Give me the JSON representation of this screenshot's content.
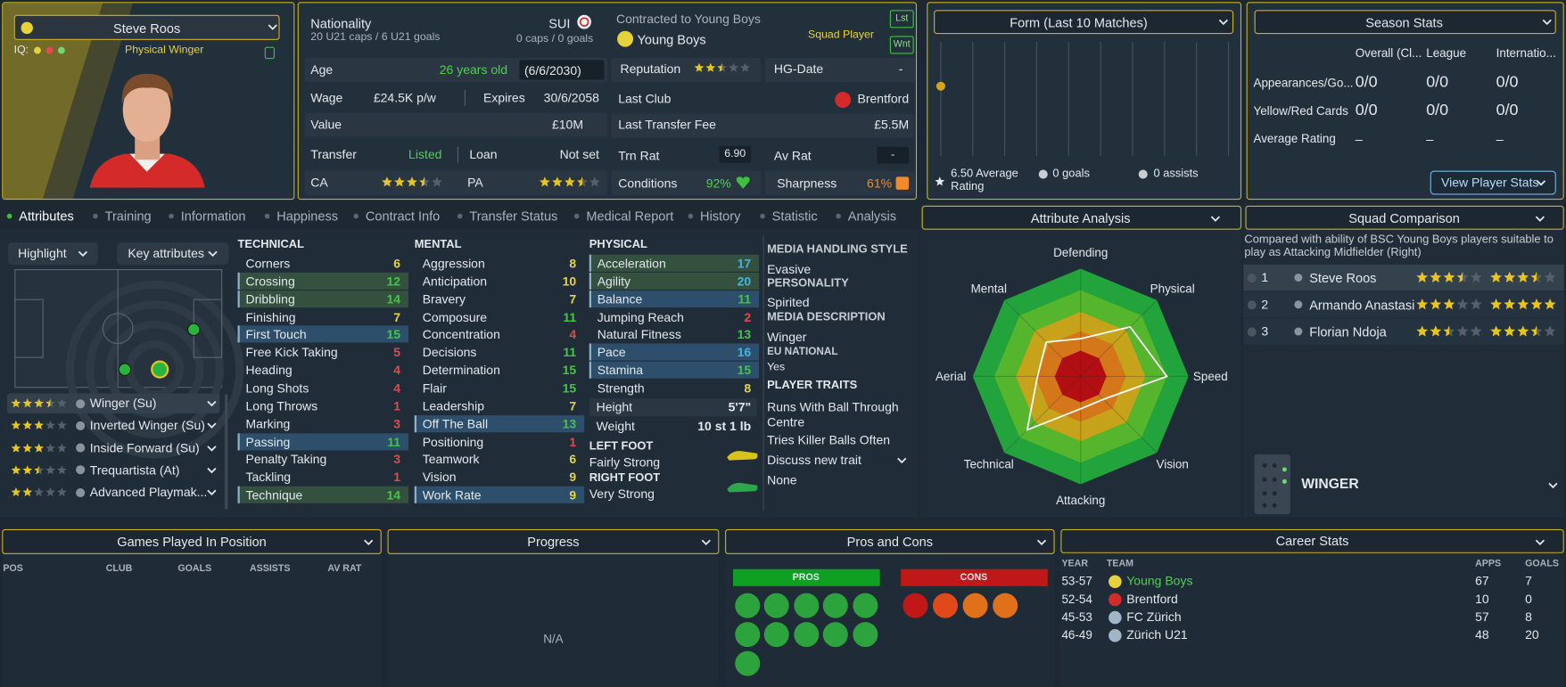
{
  "player_card": {
    "name": "Steve Roos",
    "iq_label": "IQ:",
    "role": "Physical Winger"
  },
  "details": {
    "nationality_label": "Nationality",
    "nationality": "SUI",
    "u21_caps": "20 U21 caps / 6 U21 goals",
    "caps": "0 caps / 0 goals",
    "age_label": "Age",
    "age": "26 years old",
    "age_date": "(6/6/2030)",
    "wage_label": "Wage",
    "wage": "£24.5K p/w",
    "expires_label": "Expires",
    "expires": "30/6/2058",
    "value_label": "Value",
    "value": "£10M",
    "transfer_label": "Transfer",
    "transfer": "Listed",
    "loan_label": "Loan",
    "loan": "Not set",
    "ca_label": "CA",
    "ca_stars": 3.5,
    "pa_label": "PA",
    "pa_stars": 3.5
  },
  "contract": {
    "label": "Contracted to Young Boys",
    "club": "Young Boys",
    "status": "Squad Player",
    "buttons": [
      "Lst",
      "Wnt"
    ],
    "reputation_label": "Reputation",
    "reputation_stars": 2.5,
    "hg_label": "HG-Date",
    "hg": "-",
    "last_club_label": "Last Club",
    "last_club": "Brentford",
    "fee_label": "Last Transfer Fee",
    "fee": "£5.5M",
    "trn_label": "Trn Rat",
    "trn": "6.90",
    "av_label": "Av Rat",
    "av": "-",
    "conditions_label": "Conditions",
    "conditions": "92%",
    "sharpness_label": "Sharpness",
    "sharpness": "61%"
  },
  "form": {
    "title": "Form (Last 10 Matches)",
    "ylim": [
      1,
      10
    ],
    "ratings": [
      6.5
    ],
    "average": "6.50 Average Rating",
    "goals": "0 goals",
    "assists": "0 assists"
  },
  "season_stats": {
    "title": "Season Stats",
    "columns": [
      "Overall (Cl...",
      "League",
      "Internatio..."
    ],
    "rows": [
      {
        "label": "Appearances/Go...",
        "values": [
          "0/0",
          "0/0",
          "0/0"
        ]
      },
      {
        "label": "Yellow/Red Cards",
        "values": [
          "0/0",
          "0/0",
          "0/0"
        ]
      },
      {
        "label": "Average Rating",
        "values": [
          "–",
          "–",
          "–"
        ]
      }
    ],
    "button": "View Player Stats"
  },
  "tabs": [
    "Attributes",
    "Training",
    "Information",
    "Happiness",
    "Contract Info",
    "Transfer Status",
    "Medical Report",
    "History",
    "Statistic",
    "Analysis"
  ],
  "left_panel": {
    "highlight": "Highlight",
    "key_attributes": "Key attributes",
    "roles": [
      {
        "name": "Winger (Su)",
        "stars": 3.5
      },
      {
        "name": "Inverted Winger (Su)",
        "stars": 3
      },
      {
        "name": "Inside Forward (Su)",
        "stars": 3
      },
      {
        "name": "Trequartista (At)",
        "stars": 2.5
      },
      {
        "name": "Advanced Playmak...",
        "stars": 2
      }
    ]
  },
  "technical": {
    "title": "TECHNICAL",
    "attributes": [
      {
        "name": "Corners",
        "value": 6
      },
      {
        "name": "Crossing",
        "value": 12,
        "highlight": "#34503f"
      },
      {
        "name": "Dribbling",
        "value": 14,
        "highlight": "#34503f"
      },
      {
        "name": "Finishing",
        "value": 7
      },
      {
        "name": "First Touch",
        "value": 15,
        "highlight": "#2d4f6b"
      },
      {
        "name": "Free Kick Taking",
        "value": 5
      },
      {
        "name": "Heading",
        "value": 4
      },
      {
        "name": "Long Shots",
        "value": 4
      },
      {
        "name": "Long Throws",
        "value": 1
      },
      {
        "name": "Marking",
        "value": 3
      },
      {
        "name": "Passing",
        "value": 11,
        "highlight": "#2d4f6b"
      },
      {
        "name": "Penalty Taking",
        "value": 3
      },
      {
        "name": "Tackling",
        "value": 1
      },
      {
        "name": "Technique",
        "value": 14,
        "highlight": "#34503f"
      }
    ]
  },
  "mental": {
    "title": "MENTAL",
    "attributes": [
      {
        "name": "Aggression",
        "value": 8
      },
      {
        "name": "Anticipation",
        "value": 10
      },
      {
        "name": "Bravery",
        "value": 7
      },
      {
        "name": "Composure",
        "value": 11
      },
      {
        "name": "Concentration",
        "value": 4
      },
      {
        "name": "Decisions",
        "value": 11
      },
      {
        "name": "Determination",
        "value": 15
      },
      {
        "name": "Flair",
        "value": 15
      },
      {
        "name": "Leadership",
        "value": 7
      },
      {
        "name": "Off The Ball",
        "value": 13,
        "highlight": "#2d4f6b"
      },
      {
        "name": "Positioning",
        "value": 1
      },
      {
        "name": "Teamwork",
        "value": 6
      },
      {
        "name": "Vision",
        "value": 9
      },
      {
        "name": "Work Rate",
        "value": 9,
        "highlight": "#2d4f6b"
      }
    ]
  },
  "physical": {
    "title": "PHYSICAL",
    "attributes": [
      {
        "name": "Acceleration",
        "value": 17,
        "highlight": "#34503f"
      },
      {
        "name": "Agility",
        "value": 20,
        "highlight": "#34503f"
      },
      {
        "name": "Balance",
        "value": 11,
        "highlight": "#2d4f6b"
      },
      {
        "name": "Jumping Reach",
        "value": 2
      },
      {
        "name": "Natural Fitness",
        "value": 13
      },
      {
        "name": "Pace",
        "value": 16,
        "highlight": "#2d4f6b"
      },
      {
        "name": "Stamina",
        "value": 15,
        "highlight": "#2d4f6b"
      },
      {
        "name": "Strength",
        "value": 8
      }
    ],
    "height_label": "Height",
    "height": "5'7\"",
    "weight_label": "Weight",
    "weight": "10 st 1 lb",
    "left_foot_label": "LEFT FOOT",
    "left_foot": "Fairly Strong",
    "right_foot_label": "RIGHT FOOT",
    "right_foot": "Very Strong"
  },
  "media": {
    "handling_label": "MEDIA HANDLING STYLE",
    "handling": "Evasive",
    "personality_label": "PERSONALITY",
    "personality": "Spirited",
    "description_label": "MEDIA DESCRIPTION",
    "description": "Winger",
    "eu_label": "EU NATIONAL",
    "eu": "Yes",
    "traits_label": "PLAYER TRAITS",
    "traits": [
      "Runs With Ball Through Centre",
      "Tries Killer Balls Often"
    ],
    "discuss": "Discuss new trait",
    "discuss_value": "None"
  },
  "attribute_analysis": {
    "title": "Attribute Analysis",
    "axes": [
      "Defending",
      "Physical",
      "Speed",
      "Vision",
      "Attacking",
      "Technical",
      "Aerial",
      "Mental"
    ],
    "values": [
      7,
      13,
      16,
      6,
      6,
      14,
      8,
      9
    ],
    "rlim": [
      0,
      20
    ]
  },
  "squad_comparison": {
    "title": "Squad Comparison",
    "description": "Compared with ability of BSC Young Boys players suitable to play as Attacking Midfielder (Right)",
    "players": [
      {
        "rank": 1,
        "name": "Steve Roos",
        "current": 3.5,
        "potential": 3.5
      },
      {
        "rank": 2,
        "name": "Armando Anastasi",
        "current": 3,
        "potential": 5
      },
      {
        "rank": 3,
        "name": "Florian Ndoja",
        "current": 2.5,
        "potential": 3.5
      }
    ],
    "position": "WINGER"
  },
  "games_played": {
    "title": "Games Played In Position",
    "columns": [
      "POS",
      "CLUB",
      "GOALS",
      "ASSISTS",
      "AV RAT"
    ]
  },
  "progress": {
    "title": "Progress",
    "empty": "N/A"
  },
  "pros_cons": {
    "title": "Pros and Cons",
    "pros": "PROS",
    "cons": "CONS"
  },
  "career": {
    "title": "Career Stats",
    "columns": [
      "YEAR",
      "TEAM",
      "APPS",
      "GOALS"
    ],
    "rows": [
      [
        "53-57",
        "Young Boys",
        67,
        7
      ],
      [
        "52-54",
        "Brentford",
        10,
        0
      ],
      [
        "45-53",
        "FC Zürich",
        57,
        8
      ],
      [
        "46-49",
        "Zürich U21",
        48,
        20
      ]
    ]
  }
}
